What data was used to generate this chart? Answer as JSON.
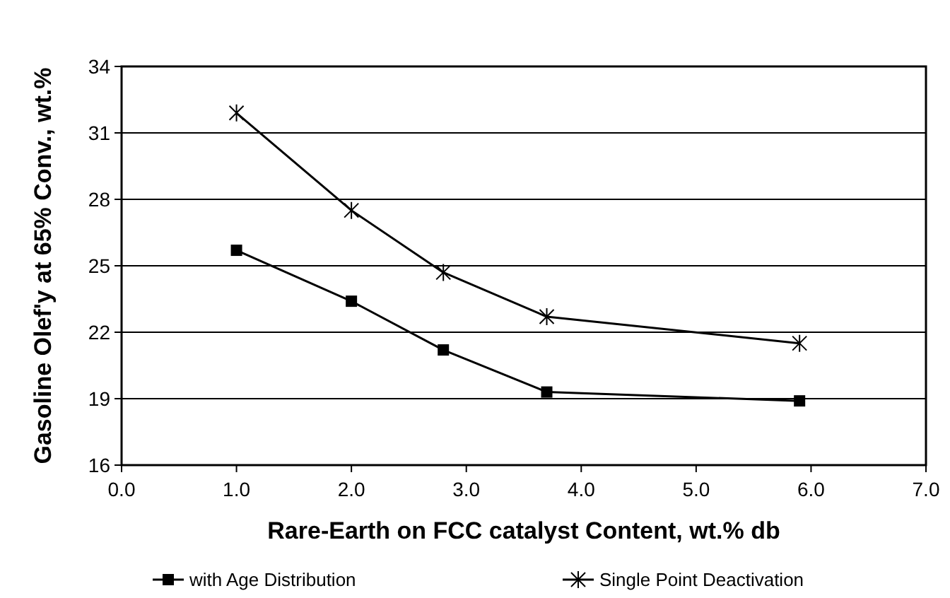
{
  "chart_data": {
    "type": "line",
    "xlabel": "Rare-Earth on FCC catalyst Content, wt.% db",
    "ylabel": "Gasoline Olef'y at 65% Conv., wt.%",
    "x": [
      1.0,
      2.0,
      2.8,
      3.7,
      5.9
    ],
    "series": [
      {
        "name": "with Age Distribution",
        "color": "#000000",
        "marker": "square",
        "values": [
          25.7,
          23.4,
          21.2,
          19.3,
          18.9
        ]
      },
      {
        "name": "Single Point Deactivation",
        "color": "#000000",
        "marker": "cross",
        "values": [
          31.9,
          27.5,
          24.7,
          22.7,
          21.5
        ]
      }
    ],
    "xlim": [
      0,
      7
    ],
    "xticks": [
      {
        "value": 0,
        "label": "0.0"
      },
      {
        "value": 1,
        "label": "1.0"
      },
      {
        "value": 2,
        "label": "2.0"
      },
      {
        "value": 3,
        "label": "3.0"
      },
      {
        "value": 4,
        "label": "4.0"
      },
      {
        "value": 5,
        "label": "5.0"
      },
      {
        "value": 6,
        "label": "6.0"
      },
      {
        "value": 7,
        "label": "7.0"
      }
    ],
    "ylim": [
      16,
      34
    ],
    "yticks": [
      16,
      19,
      22,
      25,
      28,
      31,
      34
    ],
    "grid": "y",
    "legend": "bottom",
    "line_style": "solid"
  }
}
